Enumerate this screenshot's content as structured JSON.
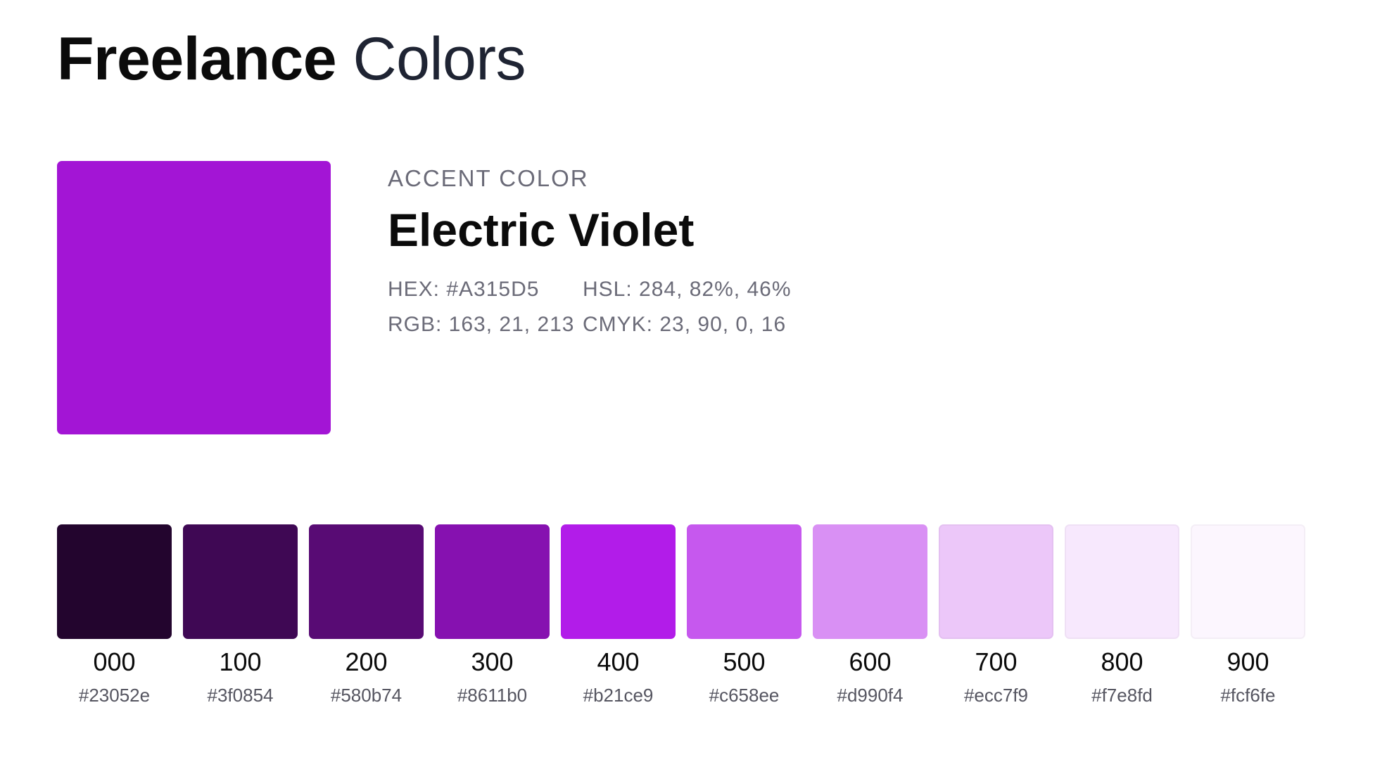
{
  "header": {
    "brand": "Freelance",
    "title_rest": "Colors"
  },
  "accent": {
    "eyebrow": "ACCENT COLOR",
    "name": "Electric Violet",
    "color": "#A315D5",
    "hex": "HEX: #A315D5",
    "hsl": "HSL: 284, 82%, 46%",
    "rgb": "RGB: 163, 21, 213",
    "cmyk": "CMYK: 23, 90, 0, 16"
  },
  "shades": [
    {
      "label": "000",
      "hex": "#23052e",
      "color": "#23052e"
    },
    {
      "label": "100",
      "hex": "#3f0854",
      "color": "#3f0854"
    },
    {
      "label": "200",
      "hex": "#580b74",
      "color": "#580b74"
    },
    {
      "label": "300",
      "hex": "#8611b0",
      "color": "#8611b0"
    },
    {
      "label": "400",
      "hex": "#b21ce9",
      "color": "#b21ce9"
    },
    {
      "label": "500",
      "hex": "#c658ee",
      "color": "#c658ee"
    },
    {
      "label": "600",
      "hex": "#d990f4",
      "color": "#d990f4"
    },
    {
      "label": "700",
      "hex": "#ecc7f9",
      "color": "#ecc7f9"
    },
    {
      "label": "800",
      "hex": "#f7e8fd",
      "color": "#f7e8fd"
    },
    {
      "label": "900",
      "hex": "#fcf6fe",
      "color": "#fcf6fe"
    }
  ]
}
